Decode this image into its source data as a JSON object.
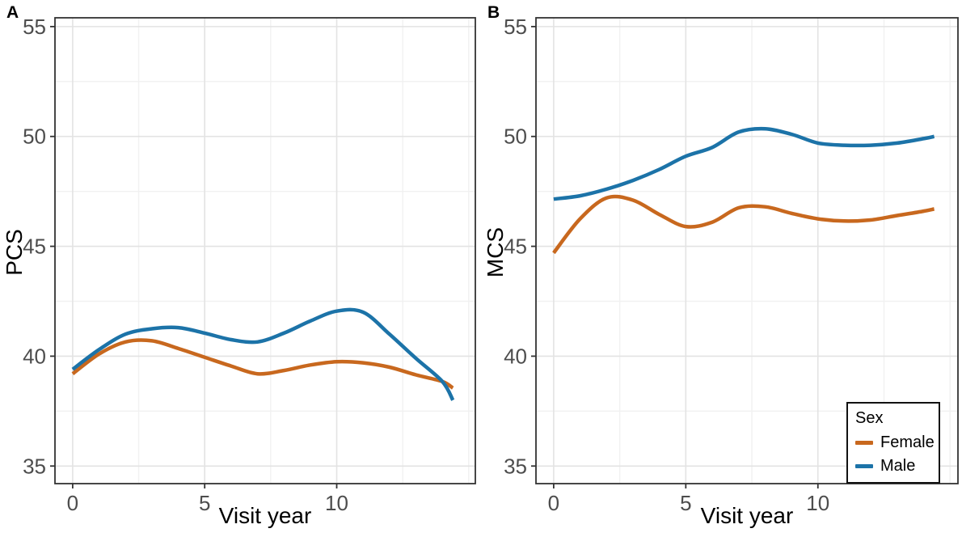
{
  "figure": {
    "background": "#ffffff",
    "description": "Two-panel smoothed line chart of SF health survey scores (PCS and MCS) over visit years, by sex"
  },
  "panels": [
    {
      "tag": "A",
      "ylabel": "PCS",
      "xlabel": "Visit year"
    },
    {
      "tag": "B",
      "ylabel": "MCS",
      "xlabel": "Visit year"
    }
  ],
  "legend": {
    "title": "Sex",
    "position": "inside bottom-right of panel B",
    "items": [
      {
        "label": "Female",
        "color": "#C8681E"
      },
      {
        "label": "Male",
        "color": "#1C73A8"
      }
    ]
  },
  "colors": {
    "female_line": "#C8681E",
    "male_line": "#1C73A8",
    "tick_label": "#4d4d4d",
    "panel_border": "#333333",
    "grid_major": "#e3e3e3",
    "grid_minor": "#f1f1f1",
    "tick_mark": "#333333"
  },
  "chart_data": [
    {
      "type": "line",
      "panel_tag": "A",
      "title": "",
      "xlabel": "Visit year",
      "ylabel": "PCS",
      "xlim": [
        -0.67,
        15.25
      ],
      "ylim": [
        34.2,
        55.4
      ],
      "xticks": [
        0,
        5,
        10
      ],
      "yticks": [
        35,
        40,
        45,
        50,
        55
      ],
      "xticks_minor": [
        2.5,
        7.5,
        12.5,
        15
      ],
      "yticks_minor": [
        37.5,
        42.5,
        47.5,
        52.5
      ],
      "grid": "major+minor",
      "legend_position": "none",
      "x": [
        0,
        1,
        2,
        3,
        4,
        5,
        6,
        7,
        8,
        9,
        10,
        11,
        12,
        13,
        14,
        14.4
      ],
      "series": [
        {
          "name": "Female",
          "color": "#C8681E",
          "values": [
            39.2,
            40.1,
            40.65,
            40.7,
            40.35,
            39.95,
            39.55,
            39.2,
            39.35,
            39.6,
            39.75,
            39.7,
            39.5,
            39.15,
            38.85,
            38.55
          ]
        },
        {
          "name": "Male",
          "color": "#1C73A8",
          "values": [
            39.4,
            40.3,
            41.0,
            41.25,
            41.3,
            41.05,
            40.75,
            40.65,
            41.05,
            41.6,
            42.05,
            42.0,
            41.0,
            39.9,
            38.85,
            38.0
          ]
        }
      ]
    },
    {
      "type": "line",
      "panel_tag": "B",
      "title": "",
      "xlabel": "Visit year",
      "ylabel": "MCS",
      "xlim": [
        -0.67,
        15.3
      ],
      "ylim": [
        34.2,
        55.4
      ],
      "xticks": [
        0,
        5,
        10
      ],
      "yticks": [
        35,
        40,
        45,
        50,
        55
      ],
      "xticks_minor": [
        2.5,
        7.5,
        12.5,
        15
      ],
      "yticks_minor": [
        37.5,
        42.5,
        47.5,
        52.5
      ],
      "grid": "major+minor",
      "legend_position": "bottom-right-inside",
      "x": [
        0,
        1,
        2,
        3,
        4,
        5,
        6,
        7,
        8,
        9,
        10,
        11,
        12,
        13,
        14,
        14.4
      ],
      "series": [
        {
          "name": "Female",
          "color": "#C8681E",
          "values": [
            44.7,
            46.25,
            47.2,
            47.1,
            46.45,
            45.9,
            46.1,
            46.75,
            46.8,
            46.5,
            46.25,
            46.15,
            46.2,
            46.4,
            46.6,
            46.7
          ]
        },
        {
          "name": "Male",
          "color": "#1C73A8",
          "values": [
            47.15,
            47.3,
            47.6,
            48.0,
            48.5,
            49.1,
            49.5,
            50.2,
            50.35,
            50.1,
            49.7,
            49.6,
            49.6,
            49.7,
            49.9,
            50.0
          ]
        }
      ]
    }
  ]
}
